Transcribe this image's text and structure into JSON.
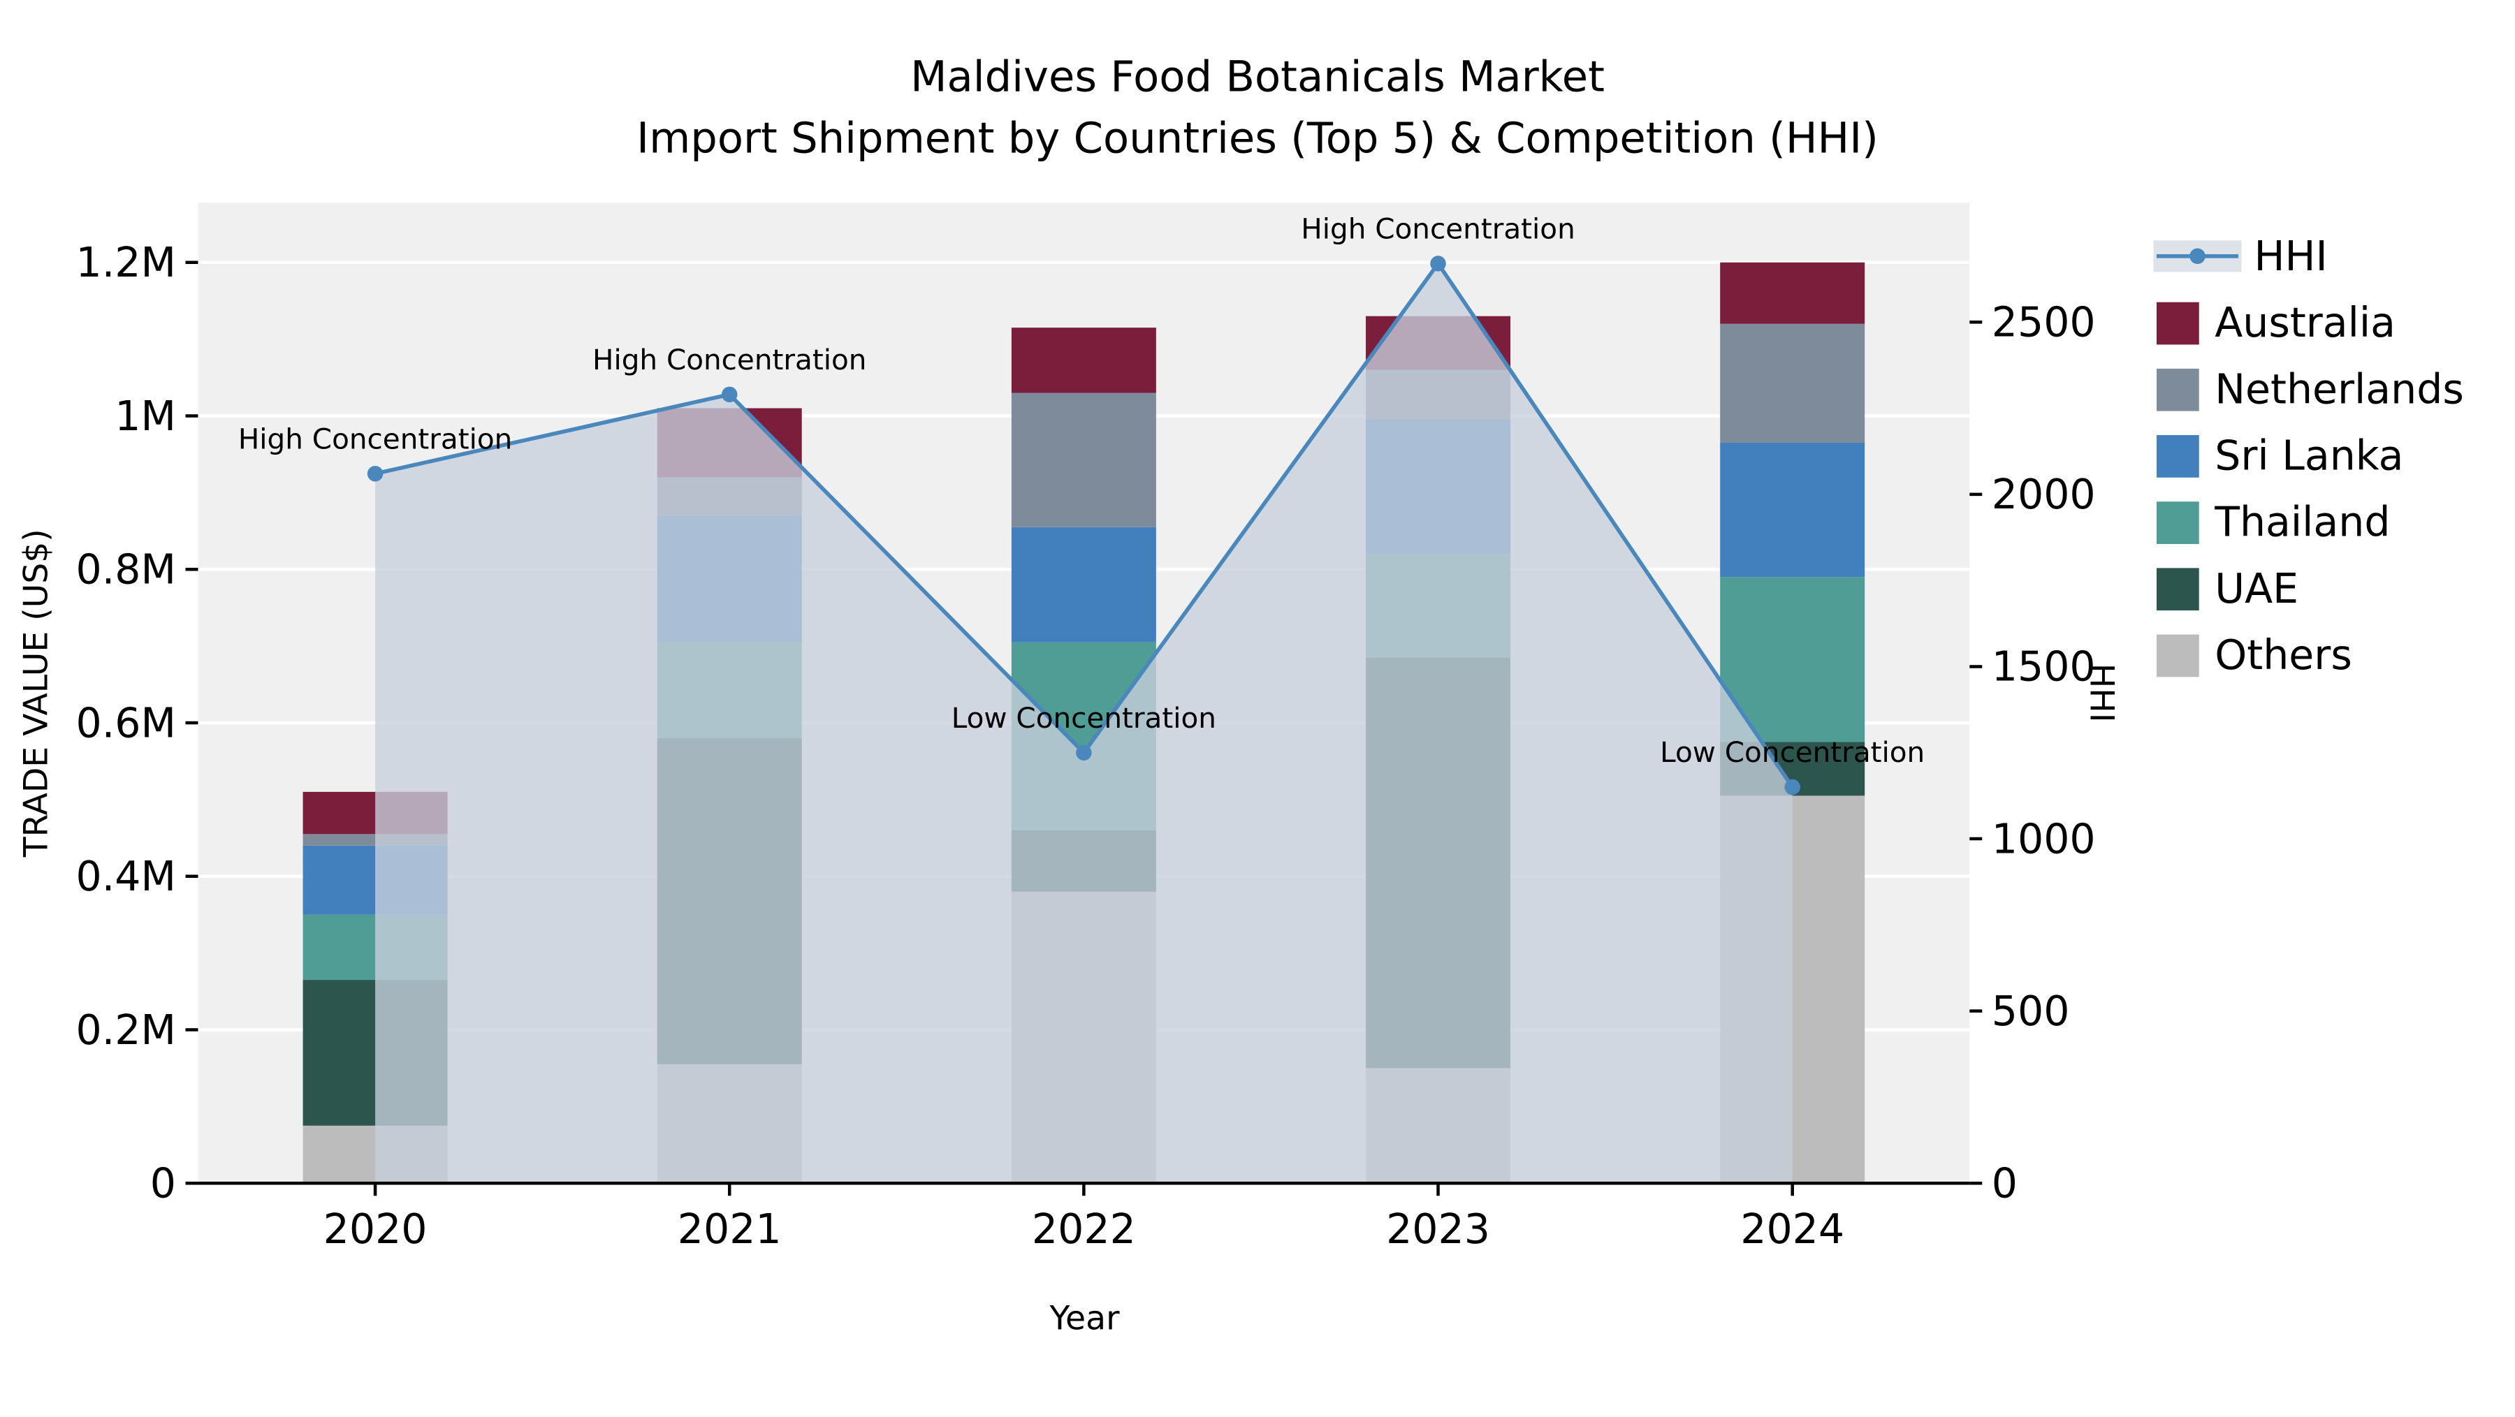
{
  "title": {
    "line1": "Maldives Food Botanicals Market",
    "line2": "Import Shipment by Countries (Top 5) & Competition (HHI)"
  },
  "axes": {
    "x_label": "Year",
    "y_left_label": "TRADE VALUE (US$)",
    "y_right_label": "HHI"
  },
  "legend": {
    "items": [
      {
        "label": "HHI",
        "swatch": "line",
        "color": "#4a87bd"
      },
      {
        "label": "Australia",
        "swatch": "square",
        "color": "#7b1e3c"
      },
      {
        "label": "Netherlands",
        "swatch": "square",
        "color": "#7e8b9a"
      },
      {
        "label": "Sri Lanka",
        "swatch": "square",
        "color": "#4180bd"
      },
      {
        "label": "Thailand",
        "swatch": "square",
        "color": "#4f9d94"
      },
      {
        "label": "UAE",
        "swatch": "square",
        "color": "#2c564d"
      },
      {
        "label": "Others",
        "swatch": "square",
        "color": "#bcbcbc"
      }
    ]
  },
  "chart_data": {
    "type": "bar",
    "subtype": "stacked-bar-with-line-overlay",
    "title": "Maldives Food Botanicals Market Import Shipment by Countries (Top 5) & Competition (HHI)",
    "xlabel": "Year",
    "ylabel_left": "TRADE VALUE (US$)",
    "ylabel_right": "HHI",
    "categories": [
      "2020",
      "2021",
      "2022",
      "2023",
      "2024"
    ],
    "series": [
      {
        "name": "Others",
        "color": "#bcbcbc",
        "values": [
          75000,
          155000,
          380000,
          150000,
          505000
        ]
      },
      {
        "name": "UAE",
        "color": "#2c564d",
        "values": [
          190000,
          425000,
          80000,
          535000,
          70000
        ]
      },
      {
        "name": "Thailand",
        "color": "#4f9d94",
        "values": [
          85000,
          125000,
          245000,
          135000,
          215000
        ]
      },
      {
        "name": "Sri Lanka",
        "color": "#4180bd",
        "values": [
          90000,
          165000,
          150000,
          175000,
          175000
        ]
      },
      {
        "name": "Netherlands",
        "color": "#7e8b9a",
        "values": [
          15000,
          50000,
          175000,
          65000,
          155000
        ]
      },
      {
        "name": "Australia",
        "color": "#7b1e3c",
        "values": [
          55000,
          90000,
          85000,
          70000,
          80000
        ]
      }
    ],
    "stack_order": "bottom-to-top",
    "line_series": {
      "name": "HHI",
      "color": "#4a87bd",
      "area_fill": "#c8d0dc",
      "area_opacity": 0.78,
      "values": [
        2060,
        2290,
        1250,
        2670,
        1150
      ]
    },
    "annotations": [
      {
        "category": "2020",
        "label": "High Concentration"
      },
      {
        "category": "2021",
        "label": "High Concentration"
      },
      {
        "category": "2022",
        "label": "Low Concentration"
      },
      {
        "category": "2023",
        "label": "High Concentration"
      },
      {
        "category": "2024",
        "label": "Low Concentration"
      }
    ],
    "y_left": {
      "tick_values": [
        0,
        200000,
        400000,
        600000,
        800000,
        1000000,
        1200000
      ],
      "tick_labels": [
        "0",
        "0.2M",
        "0.4M",
        "0.6M",
        "0.8M",
        "1M",
        "1.2M"
      ],
      "max": 1200000
    },
    "y_right": {
      "tick_values": [
        0,
        500,
        1000,
        1500,
        2000,
        2500
      ],
      "tick_labels": [
        "0",
        "500",
        "1000",
        "1500",
        "2000",
        "2500"
      ],
      "max": 2500
    },
    "grid": "horizontal-white-on-lightgray",
    "legend_position": "right-outside"
  }
}
